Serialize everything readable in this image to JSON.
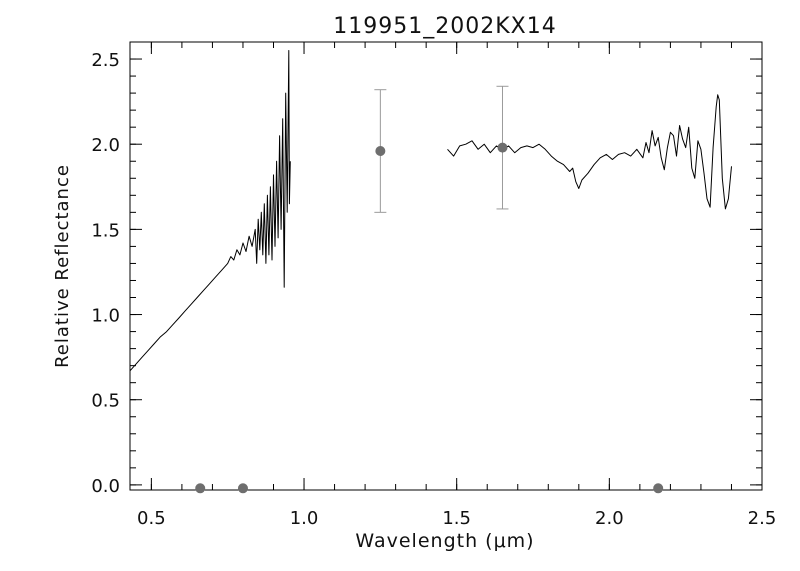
{
  "chart_data": {
    "type": "line",
    "title": "119951_2002KX14",
    "xlabel": "Wavelength (μm)",
    "ylabel": "Relative Reflectance",
    "xlim": [
      0.43,
      2.5
    ],
    "ylim": [
      -0.03,
      2.6
    ],
    "x_ticks": [
      {
        "value": 0.5,
        "label": "0.5"
      },
      {
        "value": 1.0,
        "label": "1.0"
      },
      {
        "value": 1.5,
        "label": "1.5"
      },
      {
        "value": 2.0,
        "label": "2.0"
      },
      {
        "value": 2.5,
        "label": "2.5"
      }
    ],
    "y_ticks": [
      {
        "value": 0.0,
        "label": "0.0"
      },
      {
        "value": 0.5,
        "label": "0.5"
      },
      {
        "value": 1.0,
        "label": "1.0"
      },
      {
        "value": 1.5,
        "label": "1.5"
      },
      {
        "value": 2.0,
        "label": "2.0"
      },
      {
        "value": 2.5,
        "label": "2.5"
      }
    ],
    "grid": false,
    "series": [
      {
        "style": "line",
        "color": "#000000",
        "points": [
          [
            0.43,
            0.67
          ],
          [
            0.45,
            0.71
          ],
          [
            0.47,
            0.75
          ],
          [
            0.49,
            0.79
          ],
          [
            0.51,
            0.83
          ],
          [
            0.53,
            0.87
          ],
          [
            0.55,
            0.9
          ],
          [
            0.57,
            0.94
          ],
          [
            0.59,
            0.98
          ],
          [
            0.61,
            1.02
          ],
          [
            0.63,
            1.06
          ],
          [
            0.65,
            1.1
          ],
          [
            0.67,
            1.14
          ],
          [
            0.69,
            1.18
          ],
          [
            0.71,
            1.22
          ],
          [
            0.73,
            1.26
          ],
          [
            0.75,
            1.3
          ],
          [
            0.76,
            1.34
          ],
          [
            0.77,
            1.32
          ],
          [
            0.78,
            1.38
          ],
          [
            0.79,
            1.35
          ],
          [
            0.8,
            1.42
          ],
          [
            0.81,
            1.37
          ],
          [
            0.82,
            1.46
          ],
          [
            0.83,
            1.4
          ],
          [
            0.84,
            1.5
          ],
          [
            0.845,
            1.3
          ],
          [
            0.85,
            1.56
          ],
          [
            0.855,
            1.38
          ],
          [
            0.86,
            1.6
          ],
          [
            0.865,
            1.35
          ],
          [
            0.87,
            1.65
          ],
          [
            0.875,
            1.3
          ],
          [
            0.88,
            1.7
          ],
          [
            0.885,
            1.35
          ],
          [
            0.89,
            1.75
          ],
          [
            0.895,
            1.32
          ],
          [
            0.9,
            1.82
          ],
          [
            0.905,
            1.4
          ],
          [
            0.91,
            1.9
          ],
          [
            0.915,
            1.45
          ],
          [
            0.92,
            2.05
          ],
          [
            0.925,
            1.5
          ],
          [
            0.93,
            2.15
          ],
          [
            0.935,
            1.16
          ],
          [
            0.94,
            2.3
          ],
          [
            0.945,
            1.6
          ],
          [
            0.95,
            2.55
          ],
          [
            0.952,
            1.65
          ],
          [
            0.955,
            1.9
          ]
        ]
      },
      {
        "style": "line",
        "color": "#000000",
        "points": [
          [
            1.47,
            1.97
          ],
          [
            1.49,
            1.93
          ],
          [
            1.51,
            1.99
          ],
          [
            1.53,
            2.0
          ],
          [
            1.55,
            2.02
          ],
          [
            1.57,
            1.97
          ],
          [
            1.59,
            2.0
          ],
          [
            1.61,
            1.95
          ],
          [
            1.63,
            1.99
          ],
          [
            1.65,
            1.97
          ],
          [
            1.67,
            1.99
          ],
          [
            1.69,
            1.95
          ],
          [
            1.71,
            1.98
          ],
          [
            1.73,
            1.99
          ],
          [
            1.75,
            1.98
          ],
          [
            1.77,
            2.0
          ],
          [
            1.79,
            1.97
          ],
          [
            1.81,
            1.93
          ],
          [
            1.83,
            1.9
          ],
          [
            1.85,
            1.88
          ],
          [
            1.87,
            1.84
          ],
          [
            1.88,
            1.86
          ],
          [
            1.89,
            1.78
          ],
          [
            1.9,
            1.74
          ],
          [
            1.91,
            1.79
          ],
          [
            1.93,
            1.83
          ],
          [
            1.95,
            1.88
          ],
          [
            1.97,
            1.92
          ],
          [
            1.99,
            1.94
          ],
          [
            2.01,
            1.91
          ],
          [
            2.03,
            1.94
          ],
          [
            2.05,
            1.95
          ],
          [
            2.07,
            1.93
          ],
          [
            2.09,
            1.97
          ],
          [
            2.11,
            1.92
          ],
          [
            2.12,
            2.01
          ],
          [
            2.13,
            1.95
          ],
          [
            2.14,
            2.08
          ],
          [
            2.15,
            1.99
          ],
          [
            2.16,
            2.04
          ],
          [
            2.17,
            1.92
          ],
          [
            2.18,
            1.85
          ],
          [
            2.19,
            1.98
          ],
          [
            2.2,
            2.07
          ],
          [
            2.21,
            2.05
          ],
          [
            2.22,
            1.93
          ],
          [
            2.23,
            2.11
          ],
          [
            2.24,
            2.03
          ],
          [
            2.25,
            1.98
          ],
          [
            2.26,
            2.1
          ],
          [
            2.27,
            1.86
          ],
          [
            2.28,
            1.8
          ],
          [
            2.29,
            2.02
          ],
          [
            2.3,
            1.97
          ],
          [
            2.31,
            1.83
          ],
          [
            2.32,
            1.68
          ],
          [
            2.33,
            1.63
          ],
          [
            2.34,
            1.98
          ],
          [
            2.35,
            2.22
          ],
          [
            2.355,
            2.29
          ],
          [
            2.36,
            2.26
          ],
          [
            2.37,
            1.8
          ],
          [
            2.38,
            1.62
          ],
          [
            2.39,
            1.68
          ],
          [
            2.4,
            1.87
          ]
        ]
      },
      {
        "style": "points",
        "color": "#6e6e6e",
        "points": [
          [
            0.66,
            -0.02
          ],
          [
            0.8,
            -0.02
          ],
          [
            1.25,
            1.96
          ],
          [
            1.65,
            1.98
          ],
          [
            2.16,
            -0.02
          ]
        ],
        "errors": [
          null,
          null,
          0.36,
          0.36,
          null
        ]
      }
    ]
  }
}
